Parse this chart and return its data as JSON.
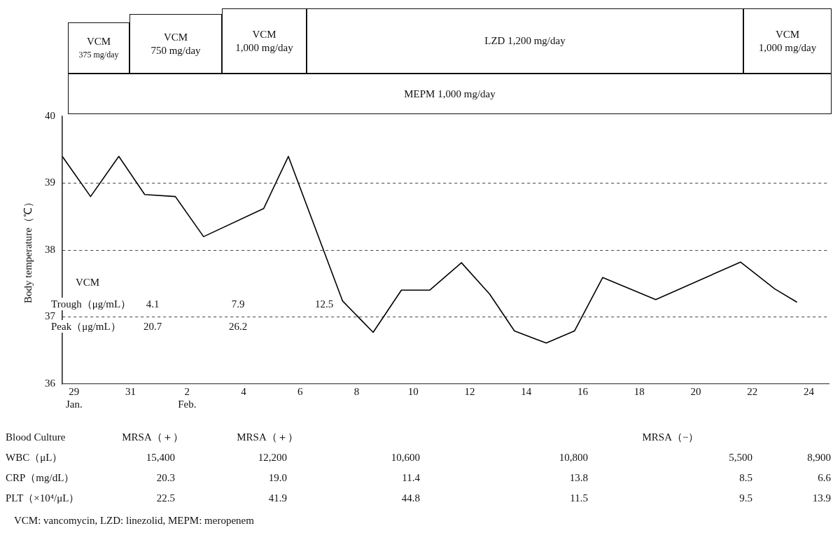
{
  "chart_data": {
    "type": "line",
    "ylabel": "Body temperature（℃）",
    "x": [
      "--01-28T14:00",
      "--01-29T14:00",
      "--01-30T14:00",
      "--01-31T12:00",
      "--02-01T14:00",
      "--02-02T14:00",
      "--02-04T17:00",
      "--02-05T14:00",
      "--02-07T12:00",
      "--02-08T14:00",
      "--02-09T14:00",
      "--02-10T14:00",
      "--02-11T17:00",
      "--02-12T17:00",
      "--02-13T14:00",
      "--02-14T17:00",
      "--02-15T17:00",
      "--02-16T17:00",
      "--02-18T14:00",
      "--02-21T14:00",
      "--02-22T19:00",
      "--02-23T14:00"
    ],
    "values": [
      39.4,
      38.8,
      39.4,
      38.83,
      38.8,
      38.2,
      38.62,
      39.4,
      37.24,
      36.77,
      37.4,
      37.4,
      37.81,
      37.34,
      36.79,
      36.61,
      36.79,
      37.59,
      37.26,
      37.82,
      37.42,
      37.22
    ],
    "color": "#000000",
    "marker": "none",
    "line_style": "solid",
    "grid": "y",
    "xlim": [
      "--01-28T14:00",
      "--02-24T17:00"
    ],
    "xticks": [
      {
        "value": "--01-29",
        "label": "29\nJan."
      },
      {
        "value": "--01-31",
        "label": "31"
      },
      {
        "value": "--02-02",
        "label": "2\nFeb."
      },
      {
        "value": "--02-04",
        "label": "4"
      },
      {
        "value": "--02-06",
        "label": "6"
      },
      {
        "value": "--02-08",
        "label": "8"
      },
      {
        "value": "--02-10",
        "label": "10"
      },
      {
        "value": "--02-12",
        "label": "12"
      },
      {
        "value": "--02-14",
        "label": "14"
      },
      {
        "value": "--02-16",
        "label": "16"
      },
      {
        "value": "--02-18",
        "label": "18"
      },
      {
        "value": "--02-20",
        "label": "20"
      },
      {
        "value": "--02-22",
        "label": "22"
      },
      {
        "value": "--02-24",
        "label": "24"
      }
    ],
    "ylim": [
      36,
      40
    ],
    "yticks": [
      36,
      37,
      38,
      39,
      40
    ],
    "annotations": [
      "VCM\n375 mg/day",
      "VCM\n750 mg/day",
      "VCM\n1,000 mg/day",
      "LZD 1,200 mg/day",
      "VCM\n1,000 mg/day",
      "MEPM 1,000 mg/day",
      "VCM",
      "Trough（μg/mL）",
      "4.1",
      "7.9",
      "12.5",
      "Peak（μg/mL）",
      "20.7",
      "26.2",
      "Blood Culture",
      "MRSA（＋）",
      "MRSA（＋）",
      "MRSA（−）",
      "WBC（μL）",
      "15,400",
      "12,200",
      "10,600",
      "10,800",
      "5,500",
      "8,900",
      "CRP（mg/dL）",
      "20.3",
      "19.0",
      "11.4",
      "13.8",
      "8.5",
      "6.6",
      "PLT（×10⁴/μL）",
      "22.5",
      "41.9",
      "44.8",
      "11.5",
      "9.5",
      "13.9",
      "VCM: vancomycin, LZD: linezolid, MEPM: meropenem"
    ]
  }
}
